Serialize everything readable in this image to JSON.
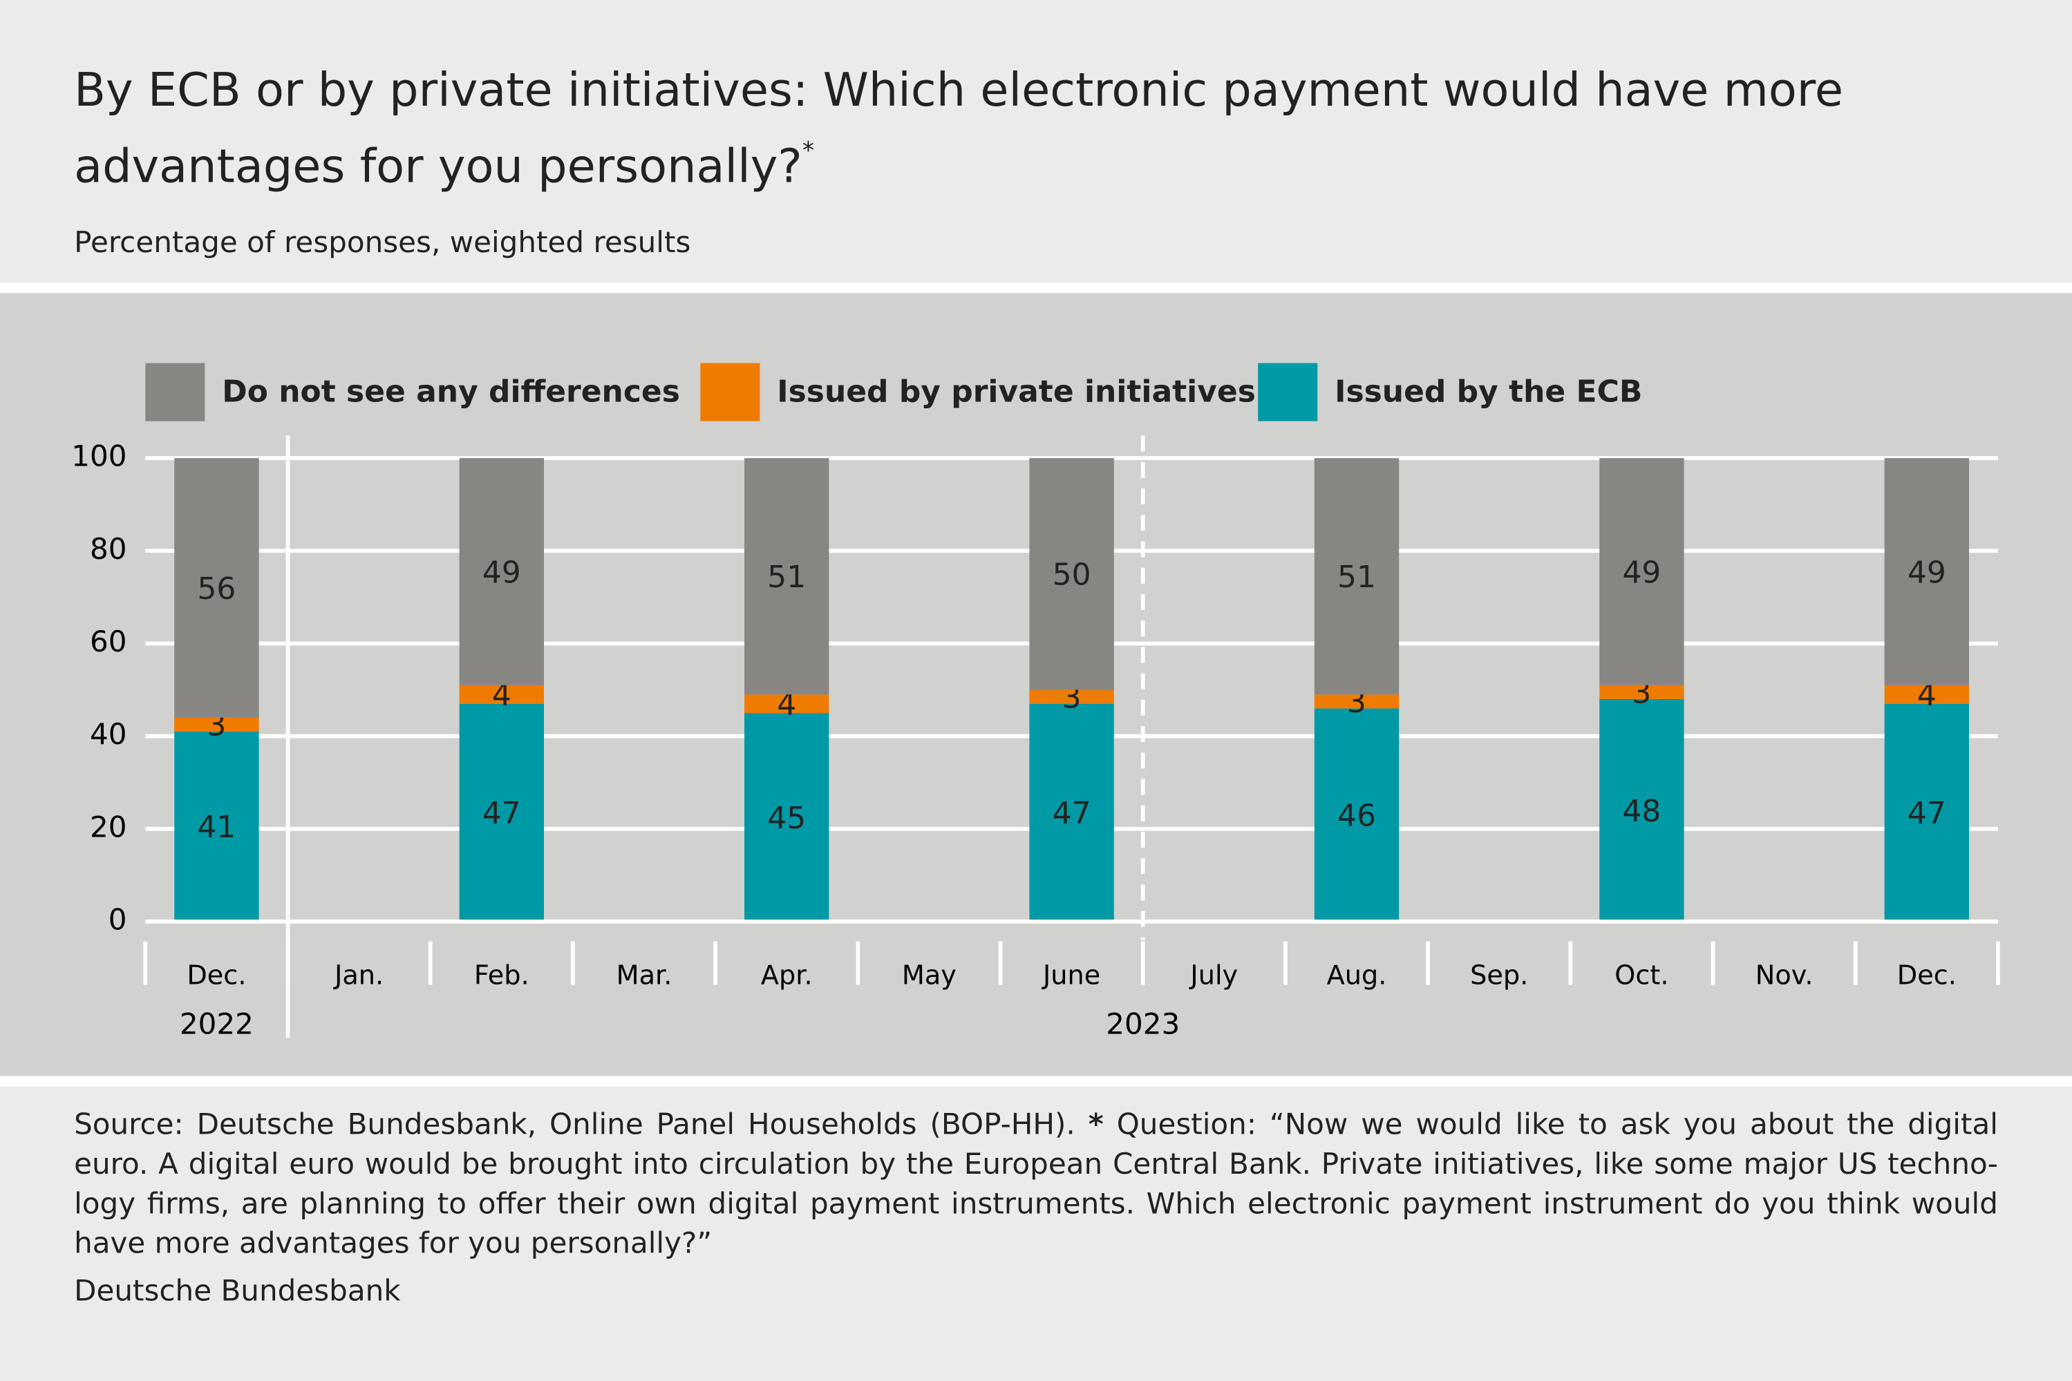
{
  "chart_data": {
    "type": "stacked-bar",
    "title": "By ECB or by private initiatives: Which electronic payment would have more advantages for you personally?",
    "title_mark": "*",
    "subtitle": "Percentage of responses, weighted results",
    "categories": [
      "Dec.",
      "Jan.",
      "Feb.",
      "Mar.",
      "Apr.",
      "May",
      "June",
      "July",
      "Aug.",
      "Sep.",
      "Oct.",
      "Nov.",
      "Dec."
    ],
    "years": [
      "2022",
      "2023"
    ],
    "series": [
      {
        "name": "Do not see any differences",
        "color": "#878682",
        "values": [
          56,
          null,
          49,
          null,
          51,
          null,
          50,
          null,
          51,
          null,
          49,
          null,
          49
        ]
      },
      {
        "name": "Issued by private initiatives",
        "color": "#ef7b00",
        "values": [
          3,
          null,
          4,
          null,
          4,
          null,
          3,
          null,
          3,
          null,
          3,
          null,
          4
        ]
      },
      {
        "name": "Issued by the ECB",
        "color": "#009aa6",
        "values": [
          41,
          null,
          47,
          null,
          45,
          null,
          47,
          null,
          46,
          null,
          48,
          null,
          47
        ]
      }
    ],
    "ylim": [
      0,
      100
    ],
    "yticks": [
      0,
      20,
      40,
      60,
      80,
      100
    ],
    "grid": true,
    "source": "Source: Deutsche Bundesbank, Online Panel Households (BOP-HH).",
    "footnote_mark": "*",
    "footnote": "Question: “Now we would like to ask you about the digital euro. A digital euro would be brought into circulation by the European Central Bank. Private initiatives, like some major US techno­logy firms, are planning to offer their own digital payment instruments. Which electronic payment instrument do you think would have more advantages for you personally?”",
    "credit": "Deutsche Bundesbank"
  }
}
